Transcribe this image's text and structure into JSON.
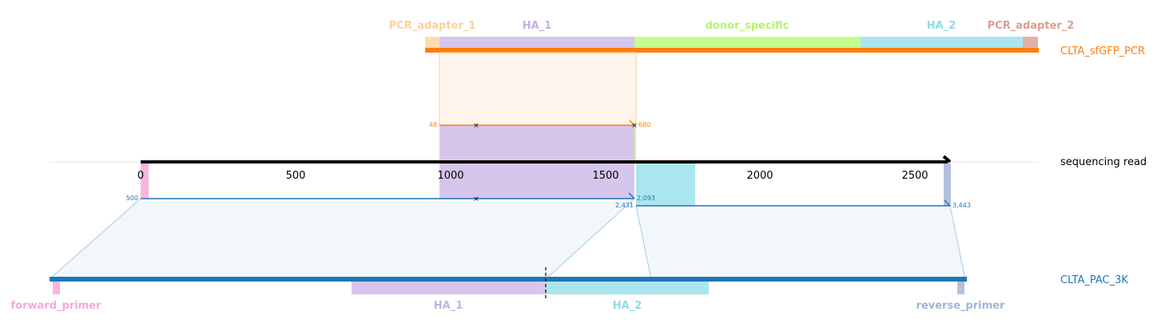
{
  "tracks": {
    "top": {
      "label": "CLTA_sfGFP_PCR",
      "color": "#ff7f0e"
    },
    "middle": {
      "label": "sequencing read",
      "color": "#000000"
    },
    "bottom": {
      "label": "CLTA_PAC_3K",
      "color": "#1f77b4"
    }
  },
  "top_features": [
    {
      "label": "PCR_adapter_1",
      "color": "#ffdcb0",
      "label_color": "#ffcf99"
    },
    {
      "label": "HA_1",
      "color": "#d6c6ec",
      "label_color": "#c5b0e4"
    },
    {
      "label": "donor_specific",
      "color": "#c4ff8e",
      "label_color": "#b4f56e"
    },
    {
      "label": "HA_2",
      "color": "#abe5ef",
      "label_color": "#8fdcea"
    },
    {
      "label": "PCR_adapter_2",
      "color": "#e2b0a6",
      "label_color": "#dd9d90"
    }
  ],
  "bottom_features": [
    {
      "label": "forward_primer",
      "color": "#f9b5e0",
      "label_color": "#f7a8dc"
    },
    {
      "label": "HA_1",
      "color": "#d6c6ec",
      "label_color": "#c5b0e4"
    },
    {
      "label": "HA_2",
      "color": "#abe5ef",
      "label_color": "#8fdcea"
    },
    {
      "label": "reverse_primer",
      "color": "#b3c1e0",
      "label_color": "#a4b3d6"
    }
  ],
  "read_axis": {
    "ticks": [
      0,
      500,
      1000,
      1500,
      2000,
      2500
    ],
    "tick_labels": [
      "0",
      "500",
      "1000",
      "1500",
      "2000",
      "2500"
    ]
  },
  "alignments": [
    {
      "target": "top",
      "start_label": "48",
      "end_label": "680",
      "color": "#ff7f0e"
    },
    {
      "target": "bottom",
      "start_label": "500",
      "end_label": "2,093",
      "color": "#1f77b4"
    },
    {
      "target": "bottom",
      "start_label": "2,431",
      "end_label": "3,443",
      "color": "#1f77b4"
    }
  ]
}
